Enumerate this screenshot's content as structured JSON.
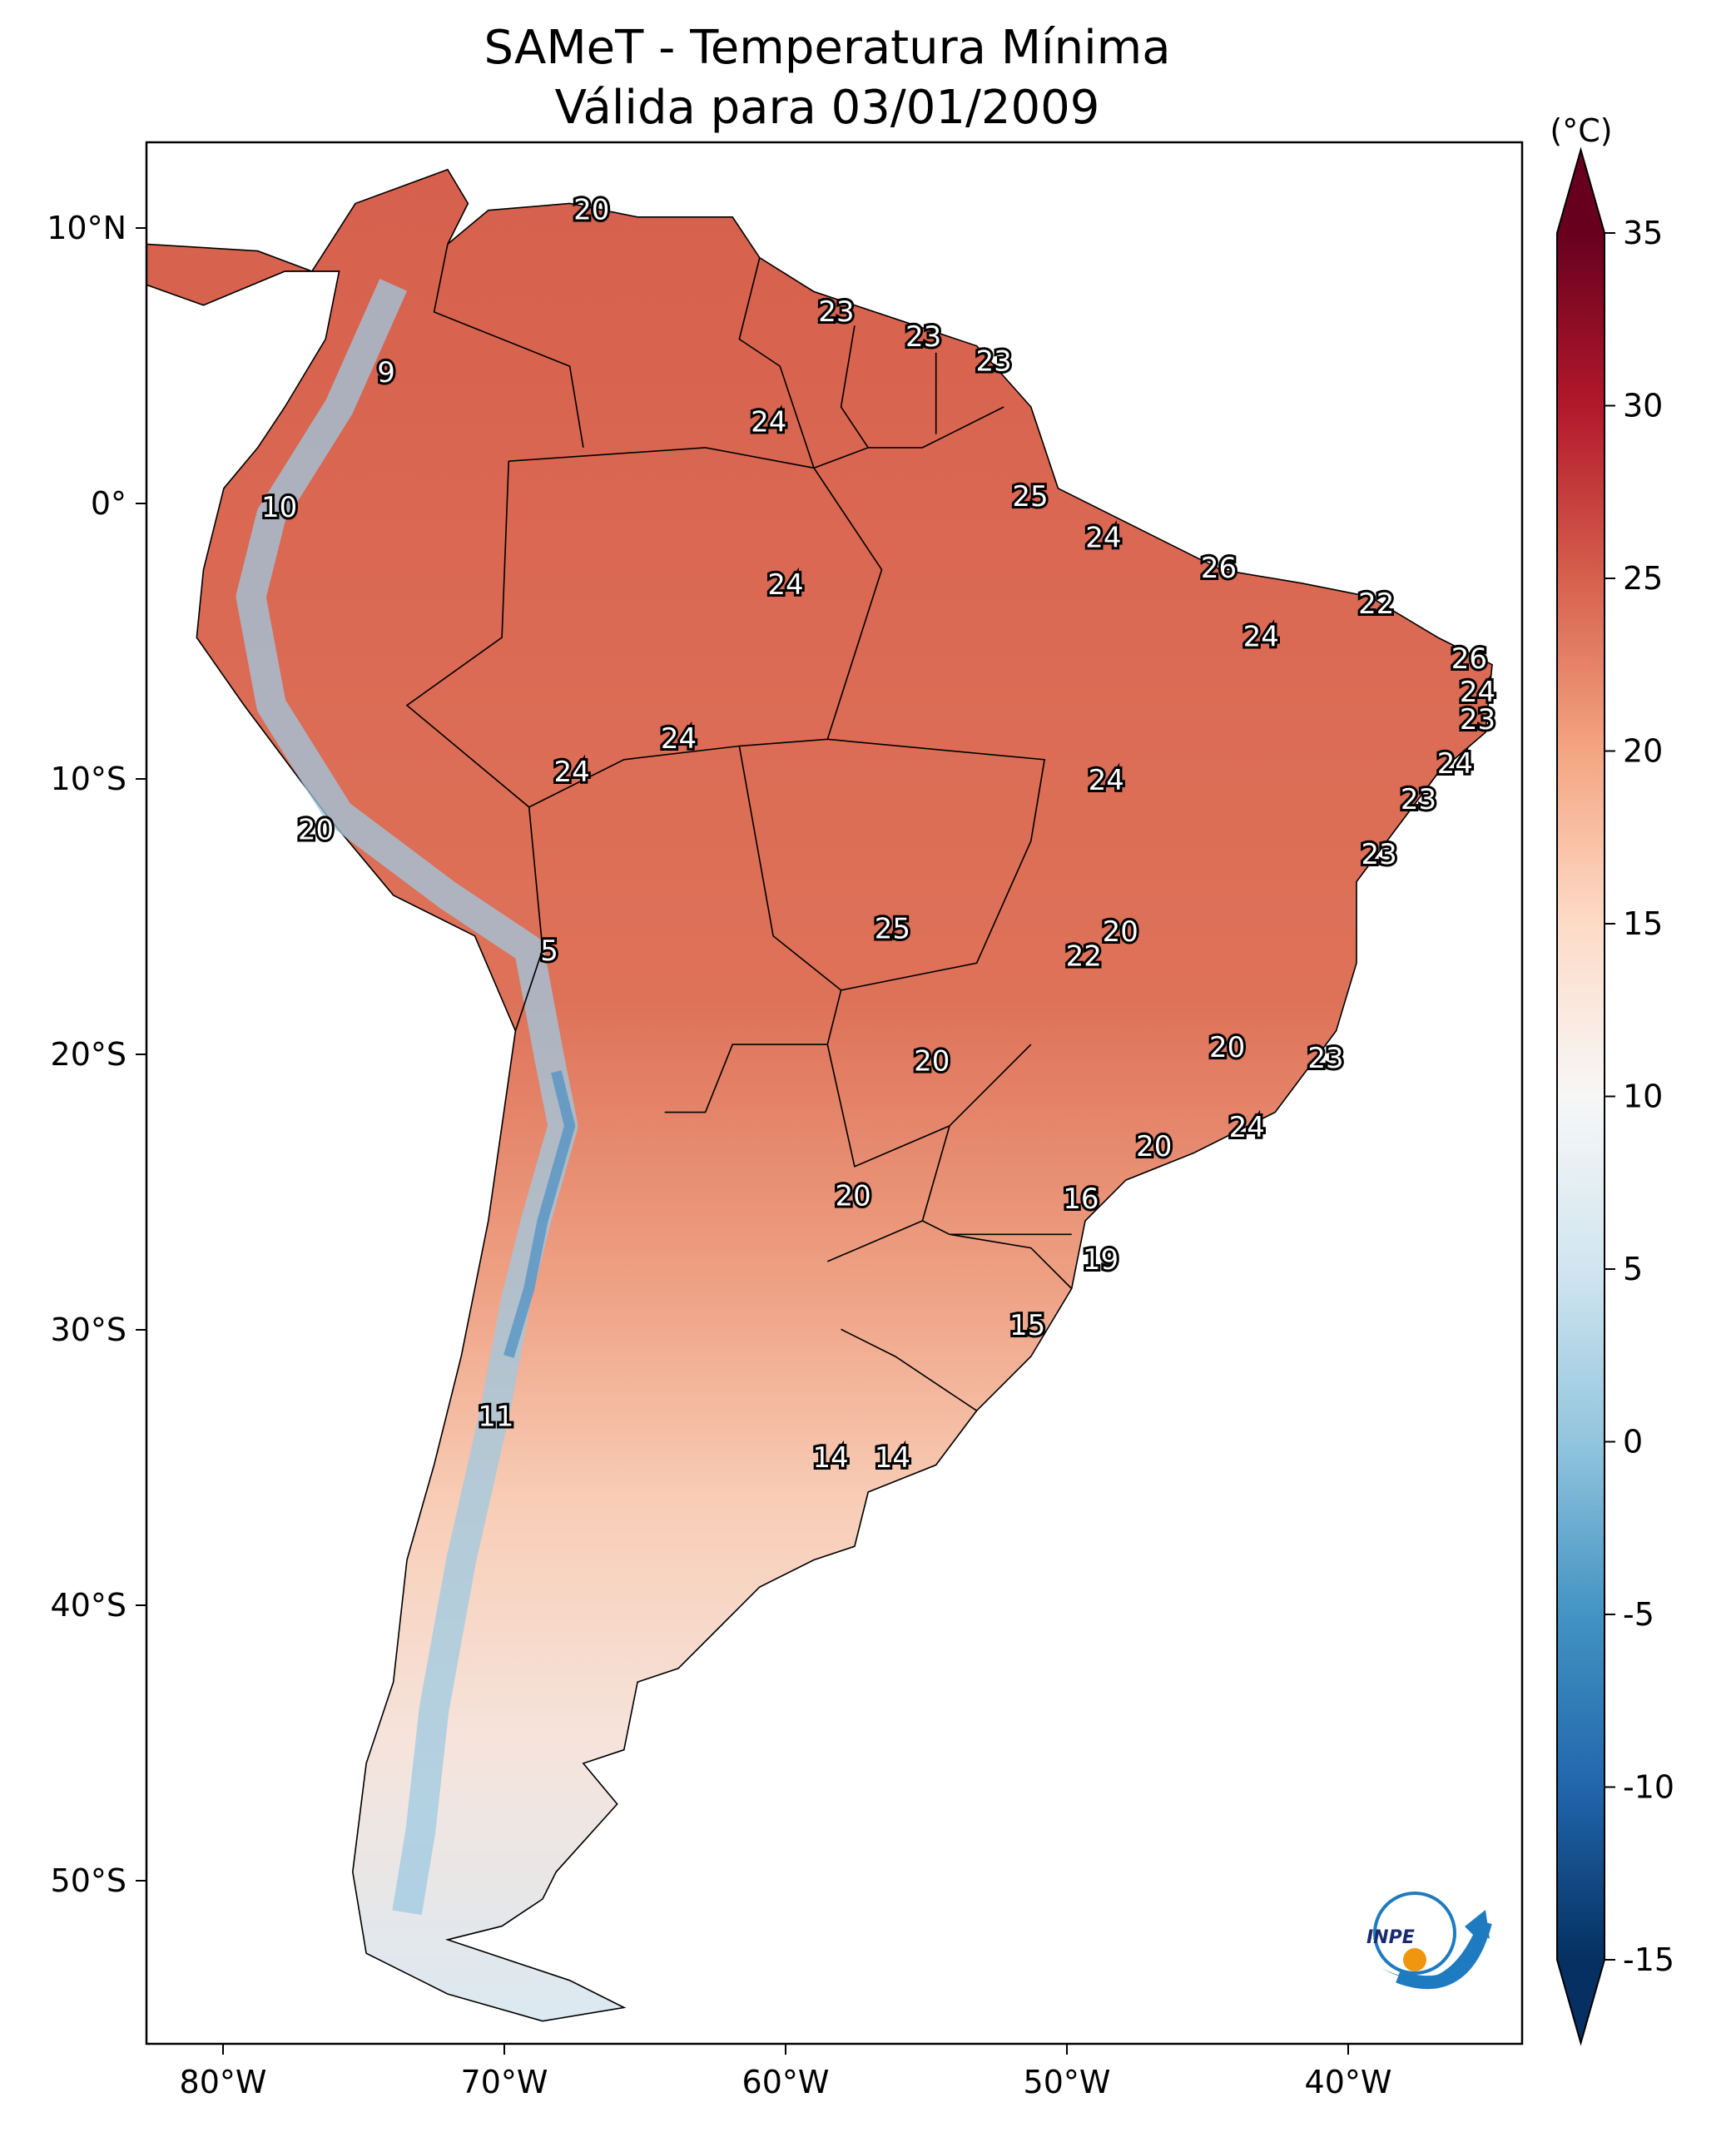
{
  "title_line1": "SAMeT - Temperatura Mínima",
  "title_line2": "Válida para 03/01/2009",
  "chart_data": {
    "type": "map",
    "title": "SAMeT - Temperatura Mínima / Válida para 03/01/2009",
    "variable": "Minimum temperature",
    "unit_label": "(°C)",
    "colorbar": {
      "ticks": [
        -15,
        -10,
        -5,
        0,
        5,
        10,
        15,
        20,
        25,
        30,
        35
      ],
      "tick_labels": [
        "-15",
        "-10",
        "-5",
        "0",
        "5",
        "10",
        "15",
        "20",
        "25",
        "30",
        "35"
      ],
      "range": [
        -15,
        35
      ],
      "extend": "both",
      "colormap": "RdBu_r",
      "colors": [
        "#053061",
        "#2166ac",
        "#4393c3",
        "#92c5de",
        "#d1e5f0",
        "#f7f7f7",
        "#fddbc7",
        "#f4a582",
        "#d6604d",
        "#b2182b",
        "#67001f"
      ]
    },
    "lat_ticks": [
      {
        "value": 10,
        "label": "10°N"
      },
      {
        "value": 0,
        "label": "0°"
      },
      {
        "value": -10,
        "label": "10°S"
      },
      {
        "value": -20,
        "label": "20°S"
      },
      {
        "value": -30,
        "label": "30°S"
      },
      {
        "value": -40,
        "label": "40°S"
      },
      {
        "value": -50,
        "label": "50°S"
      }
    ],
    "lon_ticks": [
      {
        "value": -80,
        "label": "80°W"
      },
      {
        "value": -70,
        "label": "70°W"
      },
      {
        "value": -60,
        "label": "60°W"
      },
      {
        "value": -50,
        "label": "50°W"
      },
      {
        "value": -40,
        "label": "40°W"
      }
    ],
    "station_labels": [
      {
        "value": "20",
        "lon": -66.9,
        "lat": 10.6
      },
      {
        "value": "23",
        "lon": -58.2,
        "lat": 6.9
      },
      {
        "value": "23",
        "lon": -55.1,
        "lat": 6.0
      },
      {
        "value": "23",
        "lon": -52.6,
        "lat": 5.1
      },
      {
        "value": "9",
        "lon": -74.2,
        "lat": 4.7
      },
      {
        "value": "24",
        "lon": -60.6,
        "lat": 2.9
      },
      {
        "value": "10",
        "lon": -78.0,
        "lat": -0.2
      },
      {
        "value": "25",
        "lon": -51.3,
        "lat": 0.2
      },
      {
        "value": "24",
        "lon": -48.7,
        "lat": -1.3
      },
      {
        "value": "26",
        "lon": -44.6,
        "lat": -2.4
      },
      {
        "value": "24",
        "lon": -60.0,
        "lat": -3.0
      },
      {
        "value": "22",
        "lon": -39.0,
        "lat": -3.7
      },
      {
        "value": "24",
        "lon": -43.1,
        "lat": -4.9
      },
      {
        "value": "26",
        "lon": -35.7,
        "lat": -5.7
      },
      {
        "value": "24",
        "lon": -35.4,
        "lat": -6.9
      },
      {
        "value": "23",
        "lon": -35.4,
        "lat": -7.9
      },
      {
        "value": "24",
        "lon": -36.2,
        "lat": -9.5
      },
      {
        "value": "24",
        "lon": -63.8,
        "lat": -8.6
      },
      {
        "value": "24",
        "lon": -67.6,
        "lat": -9.8
      },
      {
        "value": "24",
        "lon": -48.6,
        "lat": -10.1
      },
      {
        "value": "23",
        "lon": -37.5,
        "lat": -10.8
      },
      {
        "value": "20",
        "lon": -76.7,
        "lat": -11.9
      },
      {
        "value": "23",
        "lon": -38.9,
        "lat": -12.8
      },
      {
        "value": "25",
        "lon": -56.2,
        "lat": -15.5
      },
      {
        "value": "20",
        "lon": -48.1,
        "lat": -15.6
      },
      {
        "value": "5",
        "lon": -68.4,
        "lat": -16.3
      },
      {
        "value": "22",
        "lon": -49.4,
        "lat": -16.5
      },
      {
        "value": "20",
        "lon": -44.3,
        "lat": -19.8
      },
      {
        "value": "23",
        "lon": -40.8,
        "lat": -20.2
      },
      {
        "value": "20",
        "lon": -54.8,
        "lat": -20.3
      },
      {
        "value": "24",
        "lon": -43.6,
        "lat": -22.7
      },
      {
        "value": "20",
        "lon": -46.9,
        "lat": -23.4
      },
      {
        "value": "16",
        "lon": -49.5,
        "lat": -25.3
      },
      {
        "value": "20",
        "lon": -57.6,
        "lat": -25.2
      },
      {
        "value": "19",
        "lon": -48.8,
        "lat": -27.5
      },
      {
        "value": "15",
        "lon": -51.4,
        "lat": -29.9
      },
      {
        "value": "11",
        "lon": -70.3,
        "lat": -33.2
      },
      {
        "value": "14",
        "lon": -58.4,
        "lat": -34.7
      },
      {
        "value": "14",
        "lon": -56.2,
        "lat": -34.7
      }
    ]
  },
  "logo_text": "INPE"
}
